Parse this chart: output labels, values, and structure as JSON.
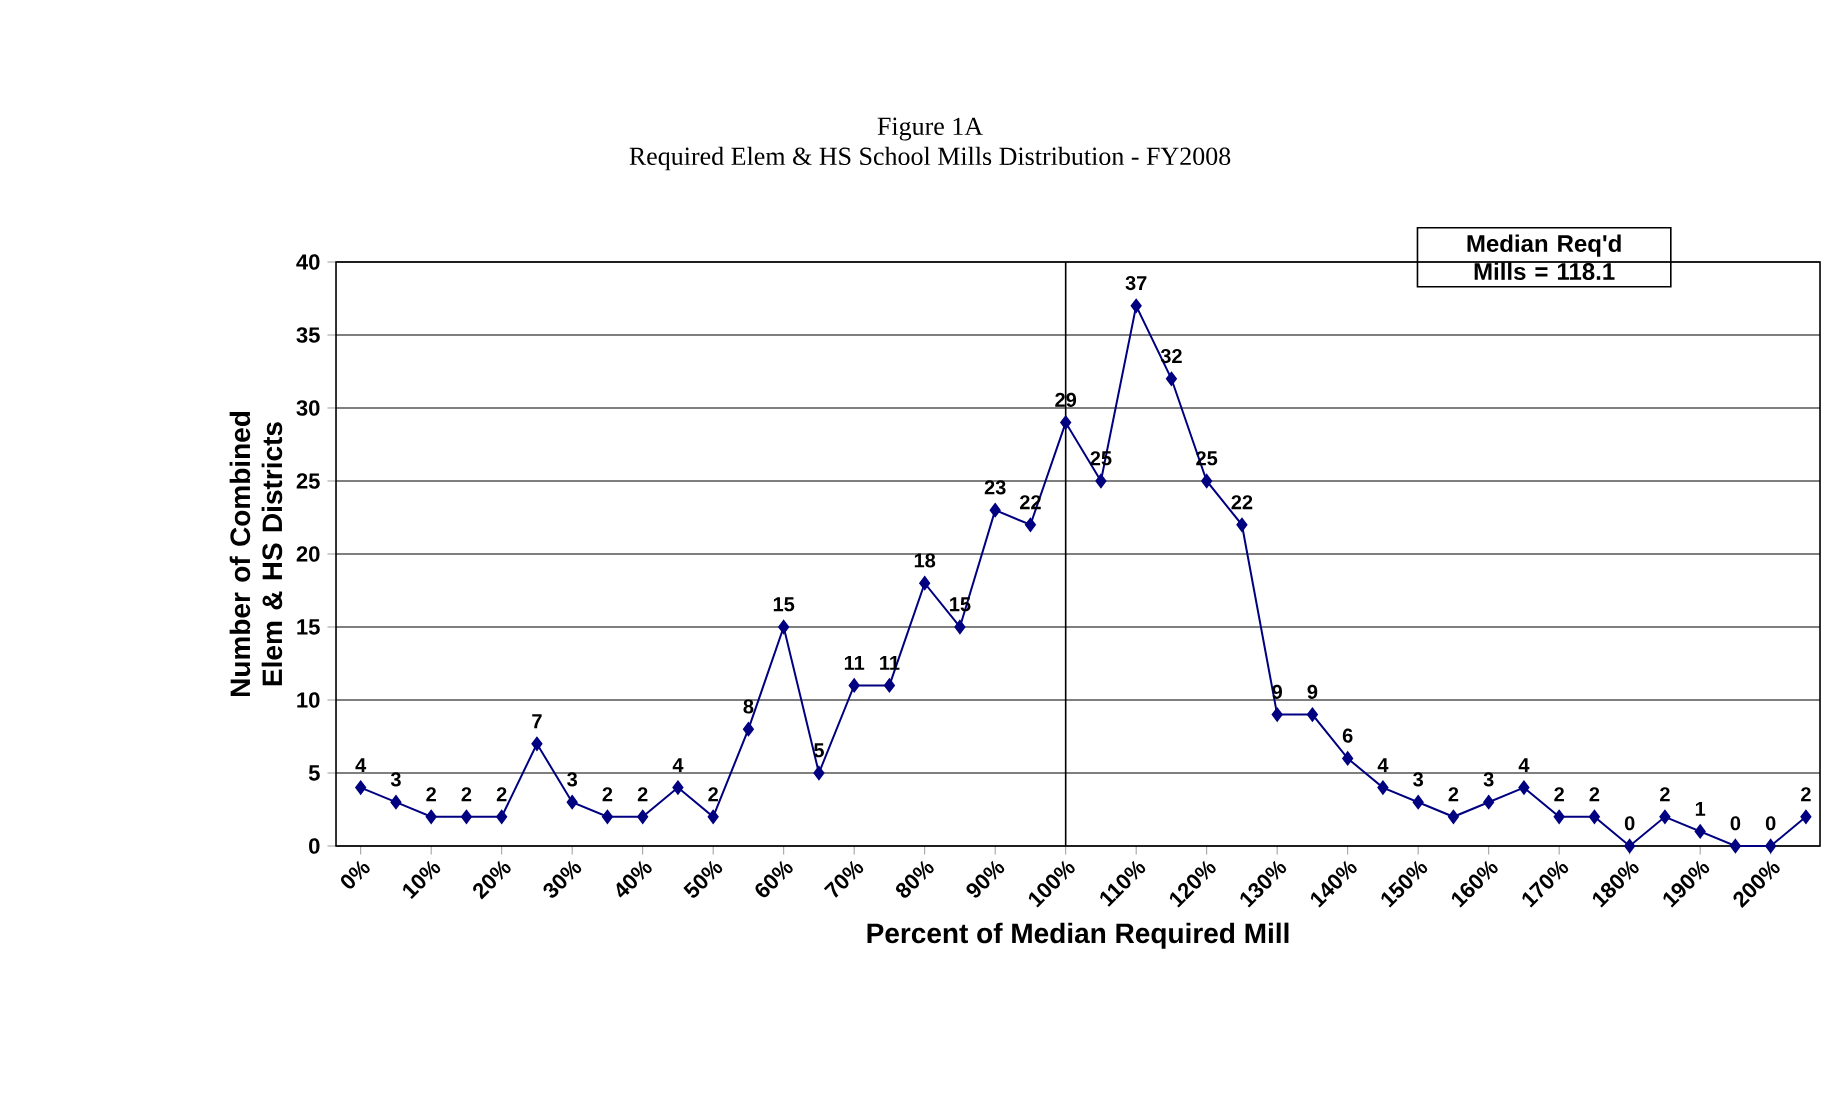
{
  "chart_data": {
    "type": "line",
    "title": "Figure 1A",
    "subtitle": "Required Elem & HS School Mills Distribution - FY2008",
    "xlabel": "Percent of Median Required Mill",
    "ylabel": "Number of Combined Elem & HS Districts",
    "categories": [
      "0%",
      null,
      "10%",
      null,
      "20%",
      null,
      "30%",
      null,
      "40%",
      null,
      "50%",
      null,
      "60%",
      null,
      "70%",
      null,
      "80%",
      null,
      "90%",
      null,
      "100%",
      null,
      "110%",
      null,
      "120%",
      null,
      "130%",
      null,
      "140%",
      null,
      "150%",
      null,
      "160%",
      null,
      "170%",
      null,
      "180%",
      null,
      "190%",
      null,
      "200%",
      null
    ],
    "values": [
      4,
      3,
      2,
      2,
      2,
      7,
      3,
      2,
      2,
      4,
      2,
      8,
      15,
      5,
      11,
      11,
      18,
      15,
      23,
      22,
      29,
      25,
      37,
      32,
      25,
      22,
      9,
      9,
      6,
      4,
      3,
      2,
      3,
      4,
      2,
      2,
      0,
      2,
      1,
      0,
      0,
      2
    ],
    "color": "#000080",
    "marker": "diamond",
    "data_labels": true,
    "ylim": [
      0,
      40
    ],
    "yticks": [
      0,
      5,
      10,
      15,
      20,
      25,
      30,
      35,
      40
    ],
    "grid": "y",
    "ref_lines": [
      {
        "axis": "x",
        "value": "100%",
        "color": "#000000"
      }
    ],
    "annotations": [
      "Median Req'd Mills = 118.1"
    ]
  }
}
